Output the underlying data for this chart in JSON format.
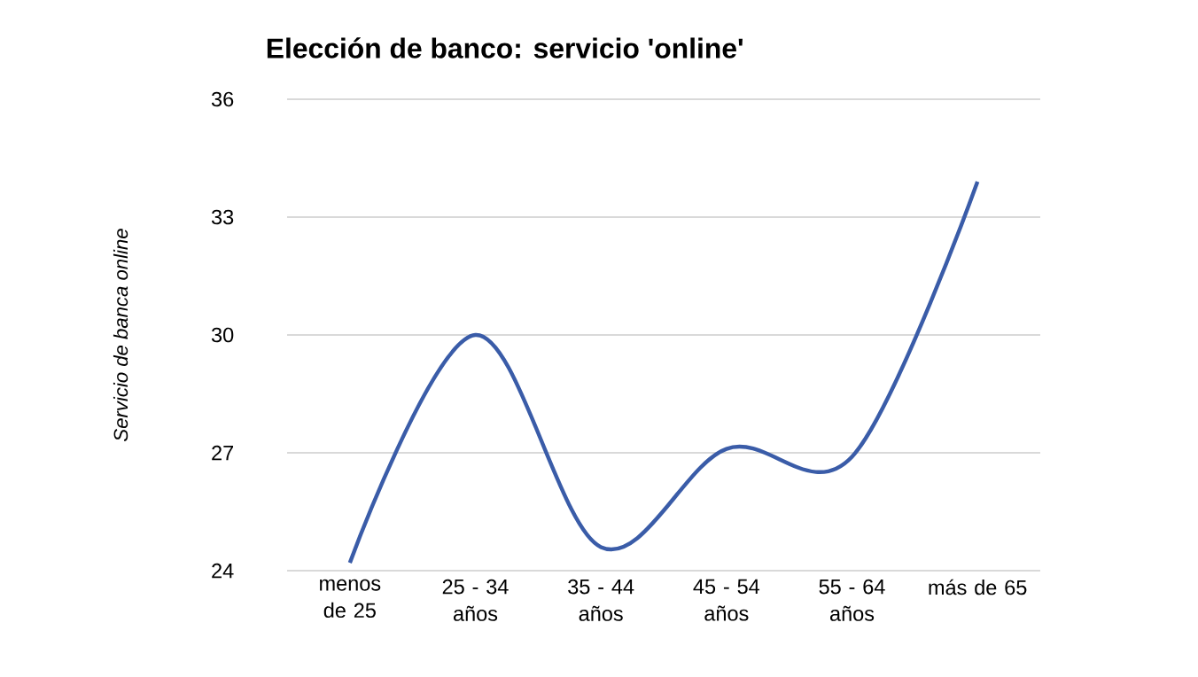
{
  "chart_data": {
    "type": "line",
    "title": "Elección de banco: servicio 'online'",
    "ylabel": "Servicio de banca online",
    "categories": [
      "menos de 25",
      "25 - 34 años",
      "35 - 44 años",
      "45 - 54 años",
      "55 - 64 años",
      "más de 65"
    ],
    "values": [
      24.2,
      30.0,
      24.6,
      27.1,
      26.9,
      33.9
    ],
    "color": "#3a5ca8",
    "ylim": [
      24,
      36
    ],
    "yticks": [
      24,
      27,
      30,
      33,
      36
    ],
    "grid": "y"
  }
}
